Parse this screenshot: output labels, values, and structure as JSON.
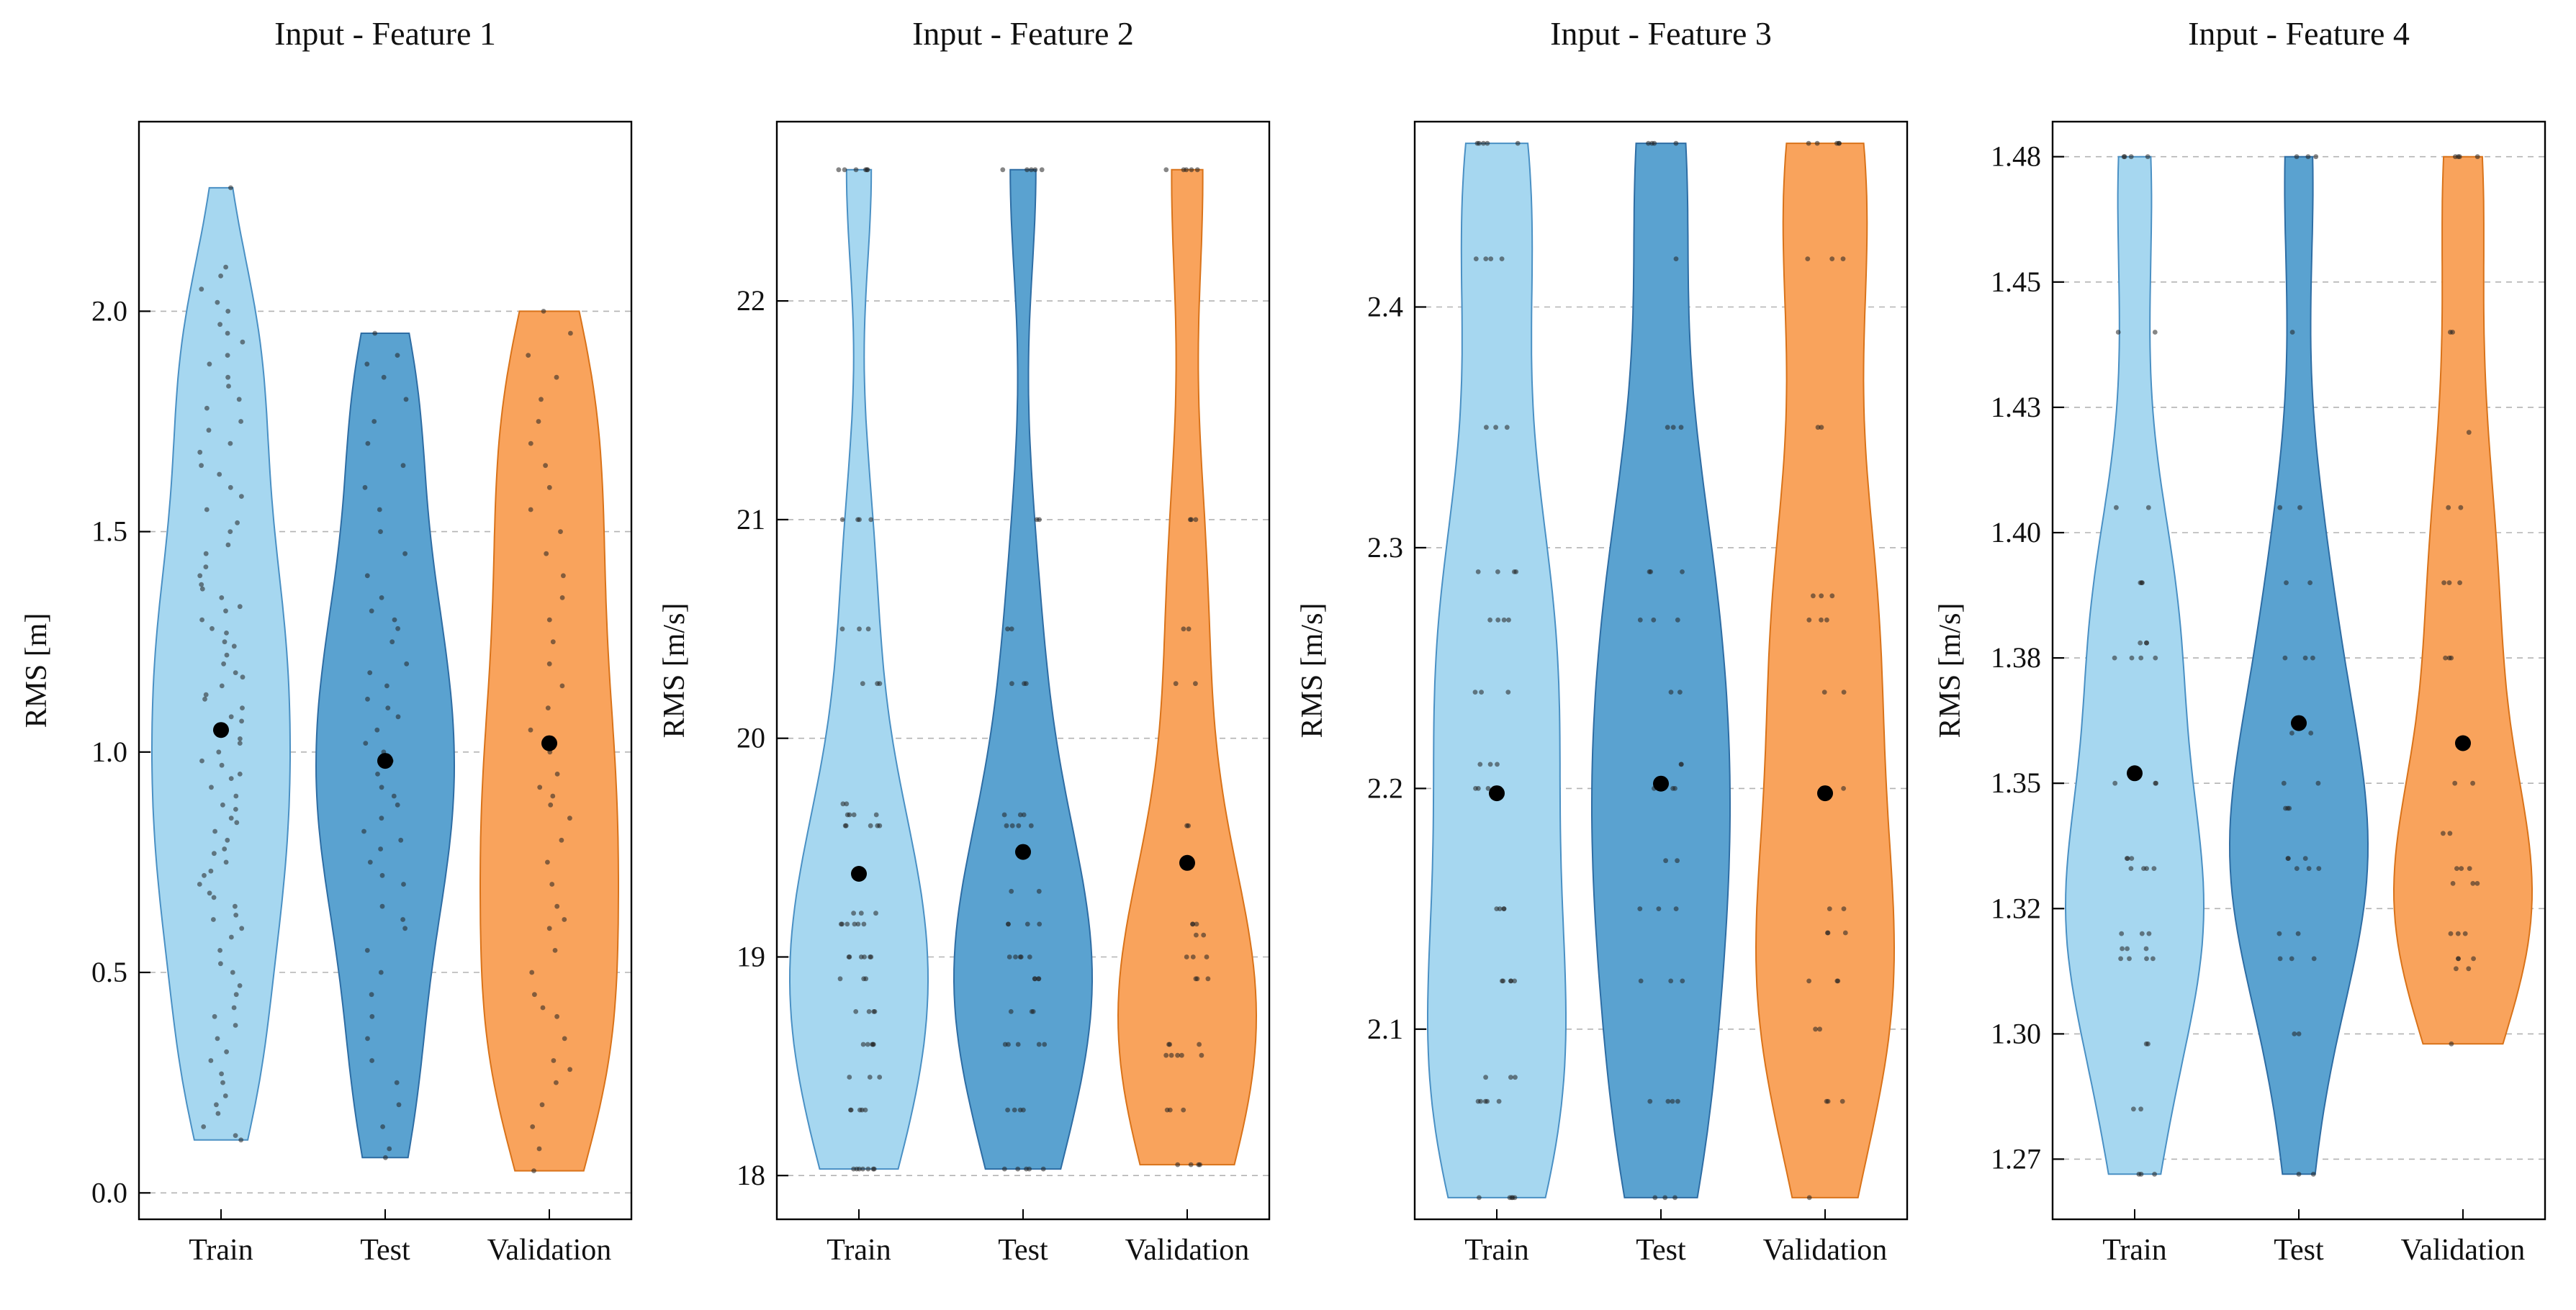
{
  "figure": {
    "background": "#ffffff",
    "grid_color": "#b3b3b3",
    "axis_color": "#000000",
    "scatter_color": "#222222",
    "mean_dot_color": "#000000"
  },
  "chart_data": [
    {
      "type": "violin",
      "title": "Input - Feature 1",
      "ylabel": "RMS [m]",
      "categories": [
        "Train",
        "Test",
        "Validation"
      ],
      "ylim": [
        -0.06,
        2.43
      ],
      "yticks": [
        0.0,
        0.5,
        1.0,
        1.5,
        2.0
      ],
      "ytick_labels": [
        "0.0",
        "0.5",
        "1.0",
        "1.5",
        "2.0"
      ],
      "grid": true,
      "legend": "none",
      "series": [
        {
          "name": "Train",
          "fill": "#a6d7f0",
          "stroke": "#4a90c4",
          "mean": 1.05,
          "points": [
            0.12,
            0.13,
            0.15,
            0.18,
            0.2,
            0.22,
            0.25,
            0.27,
            0.3,
            0.32,
            0.35,
            0.38,
            0.4,
            0.42,
            0.45,
            0.47,
            0.5,
            0.52,
            0.55,
            0.58,
            0.6,
            0.62,
            0.63,
            0.65,
            0.67,
            0.68,
            0.7,
            0.72,
            0.73,
            0.75,
            0.77,
            0.78,
            0.8,
            0.82,
            0.84,
            0.85,
            0.87,
            0.88,
            0.9,
            0.92,
            0.94,
            0.95,
            0.97,
            0.98,
            1.0,
            1.02,
            1.03,
            1.05,
            1.07,
            1.08,
            1.1,
            1.12,
            1.13,
            1.15,
            1.17,
            1.18,
            1.2,
            1.22,
            1.24,
            1.25,
            1.27,
            1.28,
            1.3,
            1.32,
            1.33,
            1.35,
            1.37,
            1.38,
            1.4,
            1.42,
            1.45,
            1.47,
            1.5,
            1.52,
            1.55,
            1.58,
            1.6,
            1.63,
            1.65,
            1.68,
            1.7,
            1.73,
            1.75,
            1.78,
            1.8,
            1.83,
            1.85,
            1.88,
            1.9,
            1.93,
            1.95,
            1.97,
            2.0,
            2.02,
            2.05,
            2.08,
            2.1,
            2.28
          ]
        },
        {
          "name": "Test",
          "fill": "#5aa2d0",
          "stroke": "#2e6da4",
          "mean": 0.98,
          "points": [
            0.08,
            0.1,
            0.15,
            0.2,
            0.25,
            0.3,
            0.35,
            0.4,
            0.45,
            0.5,
            0.55,
            0.6,
            0.62,
            0.65,
            0.7,
            0.72,
            0.75,
            0.78,
            0.8,
            0.82,
            0.85,
            0.88,
            0.9,
            0.92,
            0.95,
            0.98,
            1.0,
            1.02,
            1.05,
            1.08,
            1.1,
            1.12,
            1.15,
            1.18,
            1.2,
            1.25,
            1.28,
            1.3,
            1.32,
            1.35,
            1.4,
            1.45,
            1.5,
            1.55,
            1.6,
            1.65,
            1.7,
            1.75,
            1.8,
            1.85,
            1.88,
            1.9,
            1.95
          ]
        },
        {
          "name": "Validation",
          "fill": "#f9a35c",
          "stroke": "#d9731a",
          "mean": 1.02,
          "points": [
            0.05,
            0.1,
            0.15,
            0.2,
            0.25,
            0.28,
            0.3,
            0.35,
            0.4,
            0.42,
            0.45,
            0.5,
            0.55,
            0.6,
            0.62,
            0.65,
            0.7,
            0.75,
            0.8,
            0.85,
            0.88,
            0.9,
            0.92,
            0.95,
            1.0,
            1.05,
            1.1,
            1.15,
            1.2,
            1.25,
            1.3,
            1.35,
            1.4,
            1.45,
            1.5,
            1.55,
            1.6,
            1.65,
            1.7,
            1.75,
            1.8,
            1.85,
            1.9,
            1.95,
            2.0
          ]
        }
      ]
    },
    {
      "type": "violin",
      "title": "Input - Feature 2",
      "ylabel": "RMS [m/s]",
      "categories": [
        "Train",
        "Test",
        "Validation"
      ],
      "ylim": [
        17.8,
        22.82
      ],
      "yticks": [
        18,
        19,
        20,
        21,
        22
      ],
      "ytick_labels": [
        "18",
        "19",
        "20",
        "21",
        "22"
      ],
      "grid": true,
      "legend": "none",
      "series": [
        {
          "name": "Train",
          "fill": "#a6d7f0",
          "stroke": "#4a90c4",
          "mean": 19.38,
          "points": [
            18.03,
            18.03,
            18.03,
            18.03,
            18.03,
            18.03,
            18.03,
            18.3,
            18.3,
            18.3,
            18.3,
            18.3,
            18.45,
            18.45,
            18.45,
            18.6,
            18.6,
            18.6,
            18.6,
            18.6,
            18.75,
            18.75,
            18.75,
            18.75,
            18.9,
            18.9,
            18.9,
            19.0,
            19.0,
            19.0,
            19.0,
            19.0,
            19.0,
            19.15,
            19.15,
            19.15,
            19.15,
            19.15,
            19.15,
            19.2,
            19.2,
            19.2,
            19.6,
            19.6,
            19.6,
            19.6,
            19.6,
            19.65,
            19.65,
            19.65,
            19.65,
            19.7,
            19.7,
            20.25,
            20.25,
            20.25,
            20.5,
            20.5,
            20.5,
            21.0,
            21.0,
            21.0,
            21.0,
            22.6,
            22.6,
            22.6,
            22.6,
            22.6,
            22.6
          ]
        },
        {
          "name": "Test",
          "fill": "#5aa2d0",
          "stroke": "#2e6da4",
          "mean": 19.48,
          "points": [
            18.03,
            18.03,
            18.03,
            18.03,
            18.03,
            18.3,
            18.3,
            18.3,
            18.3,
            18.6,
            18.6,
            18.6,
            18.6,
            18.6,
            18.75,
            18.75,
            18.75,
            18.9,
            18.9,
            18.9,
            18.9,
            19.0,
            19.0,
            19.0,
            19.0,
            19.0,
            19.15,
            19.15,
            19.15,
            19.15,
            19.3,
            19.3,
            19.6,
            19.6,
            19.6,
            19.6,
            19.65,
            19.65,
            19.65,
            20.25,
            20.25,
            20.25,
            20.5,
            20.5,
            21.0,
            21.0,
            22.6,
            22.6,
            22.6,
            22.6,
            22.6
          ]
        },
        {
          "name": "Validation",
          "fill": "#f9a35c",
          "stroke": "#d9731a",
          "mean": 19.43,
          "points": [
            18.05,
            18.05,
            18.05,
            18.05,
            18.3,
            18.3,
            18.3,
            18.55,
            18.55,
            18.55,
            18.55,
            18.55,
            18.6,
            18.6,
            18.6,
            18.9,
            18.9,
            18.9,
            19.0,
            19.0,
            19.0,
            19.1,
            19.1,
            19.15,
            19.15,
            19.15,
            19.6,
            19.6,
            20.25,
            20.25,
            20.5,
            20.5,
            21.0,
            21.0,
            21.0,
            22.6,
            22.6,
            22.6,
            22.6,
            22.6
          ]
        }
      ]
    },
    {
      "type": "violin",
      "title": "Input - Feature 3",
      "ylabel": "RMS [m/s]",
      "categories": [
        "Train",
        "Test",
        "Validation"
      ],
      "ylim": [
        2.021,
        2.477
      ],
      "yticks": [
        2.1,
        2.2,
        2.3,
        2.4
      ],
      "ytick_labels": [
        "2.1",
        "2.2",
        "2.3",
        "2.4"
      ],
      "grid": true,
      "legend": "none",
      "series": [
        {
          "name": "Train",
          "fill": "#a6d7f0",
          "stroke": "#4a90c4",
          "mean": 2.198,
          "points": [
            2.03,
            2.03,
            2.03,
            2.03,
            2.03,
            2.07,
            2.07,
            2.07,
            2.07,
            2.07,
            2.08,
            2.08,
            2.08,
            2.12,
            2.12,
            2.12,
            2.12,
            2.12,
            2.15,
            2.15,
            2.15,
            2.15,
            2.2,
            2.2,
            2.2,
            2.21,
            2.21,
            2.21,
            2.24,
            2.24,
            2.24,
            2.27,
            2.27,
            2.27,
            2.27,
            2.29,
            2.29,
            2.29,
            2.29,
            2.35,
            2.35,
            2.35,
            2.42,
            2.42,
            2.42,
            2.42,
            2.468,
            2.468,
            2.468,
            2.468,
            2.468
          ]
        },
        {
          "name": "Test",
          "fill": "#5aa2d0",
          "stroke": "#2e6da4",
          "mean": 2.202,
          "points": [
            2.03,
            2.03,
            2.03,
            2.07,
            2.07,
            2.07,
            2.07,
            2.12,
            2.12,
            2.12,
            2.15,
            2.15,
            2.15,
            2.17,
            2.17,
            2.2,
            2.2,
            2.2,
            2.21,
            2.21,
            2.24,
            2.24,
            2.27,
            2.27,
            2.27,
            2.29,
            2.29,
            2.29,
            2.35,
            2.35,
            2.35,
            2.42,
            2.468,
            2.468,
            2.468,
            2.468
          ]
        },
        {
          "name": "Validation",
          "fill": "#f9a35c",
          "stroke": "#d9731a",
          "mean": 2.198,
          "points": [
            2.03,
            2.07,
            2.07,
            2.07,
            2.1,
            2.1,
            2.12,
            2.12,
            2.12,
            2.14,
            2.14,
            2.14,
            2.15,
            2.15,
            2.2,
            2.2,
            2.24,
            2.24,
            2.27,
            2.27,
            2.27,
            2.28,
            2.28,
            2.28,
            2.35,
            2.35,
            2.42,
            2.42,
            2.42,
            2.468,
            2.468,
            2.468,
            2.468,
            2.468
          ]
        }
      ]
    },
    {
      "type": "violin",
      "title": "Input - Feature 4",
      "ylabel": "RMS [m/s]",
      "categories": [
        "Train",
        "Test",
        "Validation"
      ],
      "ylim": [
        1.263,
        1.482
      ],
      "yticks": [
        1.275,
        1.3,
        1.325,
        1.35,
        1.375,
        1.4,
        1.425,
        1.45,
        1.475
      ],
      "ytick_labels": [
        "1.27",
        "1.30",
        "1.32",
        "1.35",
        "1.38",
        "1.40",
        "1.43",
        "1.45",
        "1.48"
      ],
      "grid": true,
      "legend": "none",
      "series": [
        {
          "name": "Train",
          "fill": "#a6d7f0",
          "stroke": "#4a90c4",
          "mean": 1.352,
          "points": [
            1.272,
            1.272,
            1.272,
            1.285,
            1.285,
            1.298,
            1.298,
            1.315,
            1.315,
            1.315,
            1.315,
            1.317,
            1.317,
            1.317,
            1.32,
            1.32,
            1.32,
            1.333,
            1.333,
            1.333,
            1.333,
            1.335,
            1.335,
            1.335,
            1.35,
            1.35,
            1.35,
            1.375,
            1.375,
            1.375,
            1.375,
            1.378,
            1.378,
            1.378,
            1.39,
            1.39,
            1.39,
            1.405,
            1.405,
            1.44,
            1.44,
            1.475,
            1.475,
            1.475,
            1.475
          ]
        },
        {
          "name": "Test",
          "fill": "#5aa2d0",
          "stroke": "#2e6da4",
          "mean": 1.362,
          "points": [
            1.272,
            1.272,
            1.3,
            1.3,
            1.315,
            1.315,
            1.315,
            1.32,
            1.32,
            1.333,
            1.333,
            1.333,
            1.335,
            1.335,
            1.335,
            1.345,
            1.345,
            1.345,
            1.35,
            1.35,
            1.36,
            1.36,
            1.375,
            1.375,
            1.375,
            1.39,
            1.39,
            1.405,
            1.405,
            1.44,
            1.475,
            1.475,
            1.475
          ]
        },
        {
          "name": "Validation",
          "fill": "#f9a35c",
          "stroke": "#d9731a",
          "mean": 1.358,
          "points": [
            1.298,
            1.313,
            1.313,
            1.315,
            1.315,
            1.315,
            1.32,
            1.32,
            1.32,
            1.33,
            1.33,
            1.33,
            1.333,
            1.333,
            1.333,
            1.34,
            1.34,
            1.35,
            1.35,
            1.375,
            1.375,
            1.375,
            1.39,
            1.39,
            1.39,
            1.405,
            1.405,
            1.42,
            1.44,
            1.44,
            1.475,
            1.475,
            1.475,
            1.475
          ]
        }
      ]
    }
  ]
}
